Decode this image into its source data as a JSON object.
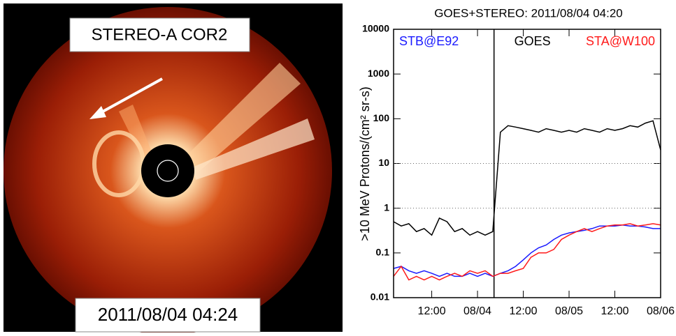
{
  "image": {
    "instrument": "STEREO-A COR2",
    "timestamp": "2011/08/04 04:24"
  },
  "chart_data": {
    "type": "line",
    "title": "GOES+STEREO: 2011/08/04 04:20",
    "y_label": ">10 MeV Protons/(cm² sr-s)",
    "log_y": true,
    "x": [
      -22,
      -20,
      -18,
      -16,
      -14,
      -12,
      -10,
      -8,
      -6,
      -4,
      -2,
      0,
      2,
      4,
      6,
      8,
      10,
      12,
      14,
      16,
      18,
      20,
      22,
      24,
      26,
      28,
      30,
      32,
      34,
      36,
      38,
      40,
      42,
      44,
      46,
      48
    ],
    "xlim": [
      -22,
      48
    ],
    "xticks": [
      {
        "value": -12,
        "label": "12:00"
      },
      {
        "value": 0,
        "label": "08/04"
      },
      {
        "value": 12,
        "label": "12:00"
      },
      {
        "value": 24,
        "label": "08/05"
      },
      {
        "value": 36,
        "label": "12:00"
      },
      {
        "value": 48,
        "label": "08/06"
      }
    ],
    "ylim": [
      0.01,
      10000
    ],
    "yticks": [
      0.01,
      0.1,
      1,
      10,
      100,
      1000,
      10000
    ],
    "hlines": [
      1,
      10
    ],
    "vline_x": 4.33,
    "series": [
      {
        "name": "STB@E92",
        "color": "#1a1aff",
        "values": [
          0.045,
          0.05,
          0.04,
          0.035,
          0.04,
          0.035,
          0.03,
          0.035,
          0.03,
          0.03,
          0.035,
          0.03,
          0.035,
          0.03,
          0.035,
          0.04,
          0.05,
          0.07,
          0.1,
          0.13,
          0.15,
          0.2,
          0.25,
          0.28,
          0.3,
          0.32,
          0.35,
          0.4,
          0.4,
          0.4,
          0.42,
          0.4,
          0.4,
          0.38,
          0.35,
          0.35
        ]
      },
      {
        "name": "GOES",
        "color": "#000000",
        "values": [
          0.5,
          0.4,
          0.45,
          0.3,
          0.35,
          0.25,
          0.6,
          0.5,
          0.3,
          0.35,
          0.25,
          0.3,
          0.25,
          0.3,
          50,
          70,
          65,
          60,
          55,
          50,
          60,
          55,
          50,
          55,
          50,
          60,
          55,
          50,
          60,
          55,
          60,
          70,
          65,
          80,
          90,
          20
        ]
      },
      {
        "name": "STA@W100",
        "color": "#ff1a1a",
        "values": [
          0.03,
          0.05,
          0.025,
          0.03,
          0.025,
          0.03,
          0.025,
          0.03,
          0.035,
          0.03,
          0.04,
          0.035,
          0.04,
          0.03,
          0.035,
          0.035,
          0.04,
          0.045,
          0.08,
          0.1,
          0.1,
          0.12,
          0.2,
          0.25,
          0.3,
          0.35,
          0.3,
          0.35,
          0.4,
          0.42,
          0.42,
          0.45,
          0.4,
          0.42,
          0.45,
          0.42
        ]
      }
    ]
  }
}
